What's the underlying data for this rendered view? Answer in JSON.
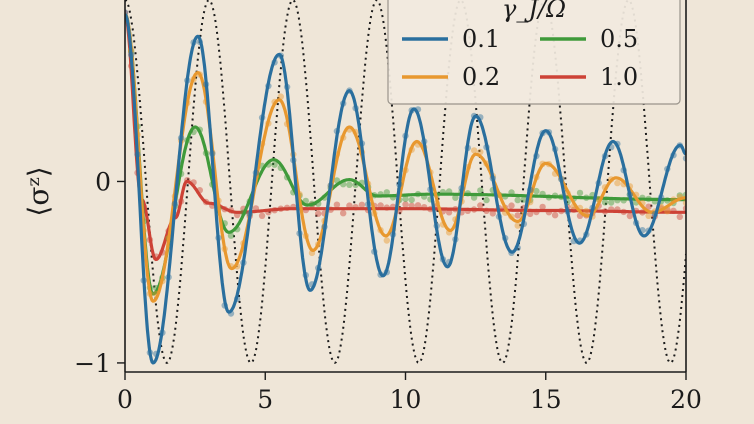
{
  "chart_data": {
    "type": "line",
    "title": "",
    "xlabel": "",
    "ylabel": "⟨σᶻ⟩",
    "xlim": [
      0,
      20
    ],
    "ylim": [
      -1.05,
      1.0
    ],
    "x_ticks": [
      0,
      5,
      10,
      15,
      20
    ],
    "x_tick_labels": [
      "0",
      "5",
      "10",
      "15",
      "20"
    ],
    "y_ticks": [
      -1,
      0
    ],
    "y_tick_labels": [
      "−1",
      "0"
    ],
    "grid": false,
    "legend": {
      "title": "γ_J/Ω",
      "placement": "top-right",
      "columns": 2,
      "entries": [
        "0.1",
        "0.5",
        "0.2",
        "1.0"
      ]
    },
    "series": [
      {
        "name": "0.1",
        "color": "#2a6f9e",
        "x": [
          0,
          1,
          2.6,
          3.7,
          5.5,
          6.6,
          8.0,
          9.2,
          10.3,
          11.5,
          12.5,
          13.8,
          15.0,
          16.2,
          17.4,
          18.5,
          19.8,
          20
        ],
        "y": [
          0.92,
          -1.0,
          0.8,
          -0.72,
          0.7,
          -0.6,
          0.5,
          -0.52,
          0.4,
          -0.47,
          0.36,
          -0.39,
          0.28,
          -0.34,
          0.22,
          -0.3,
          0.2,
          0.15
        ],
        "markers": true
      },
      {
        "name": "0.2",
        "color": "#e8982f",
        "x": [
          0,
          1,
          2.6,
          3.8,
          5.5,
          6.7,
          8.0,
          9.3,
          10.4,
          11.6,
          12.5,
          14.0,
          15.0,
          16.5,
          17.5,
          18.8,
          20
        ],
        "y": [
          0.92,
          -0.66,
          0.6,
          -0.48,
          0.45,
          -0.38,
          0.3,
          -0.3,
          0.22,
          -0.27,
          0.15,
          -0.22,
          0.1,
          -0.19,
          0.02,
          -0.17,
          -0.09
        ],
        "markers": true
      },
      {
        "name": "0.5",
        "color": "#3f9a3a",
        "x": [
          0,
          1.0,
          2.5,
          3.7,
          5.3,
          6.5,
          8.0,
          9.0,
          11.0,
          20
        ],
        "y": [
          0.92,
          -0.62,
          0.3,
          -0.28,
          0.12,
          -0.13,
          0.01,
          -0.08,
          -0.07,
          -0.1
        ],
        "markers": true
      },
      {
        "name": "1.0",
        "color": "#cd4236",
        "x": [
          0,
          0.6,
          1.1,
          1.8,
          2.2,
          3.0,
          4.0,
          6.0,
          10.0,
          15.0,
          20
        ],
        "y": [
          0.92,
          -0.1,
          -0.43,
          -0.2,
          0.0,
          -0.12,
          -0.17,
          -0.15,
          -0.15,
          -0.16,
          -0.17
        ],
        "markers": true
      },
      {
        "name": "",
        "color": "#1b1b1b",
        "dashed": true,
        "function": "cos(2.1*t)",
        "x_range": [
          0,
          20
        ]
      }
    ]
  }
}
